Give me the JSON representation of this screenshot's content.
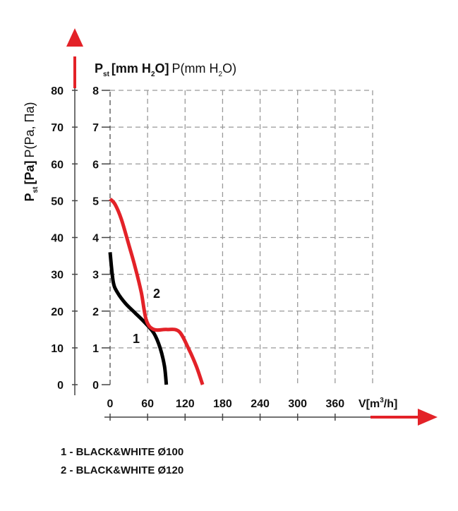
{
  "chart_data": {
    "type": "line",
    "title_right_bold": "P",
    "title_right_sub": "st",
    "title_right_unit_bold": "[mm H",
    "title_right_unit_sub": "2",
    "title_right_unit_bold_end": "O]",
    "title_right_extra": "P(mm H",
    "title_right_extra_sub": "2",
    "title_right_extra_end": "O)",
    "title_left_bold": "P",
    "title_left_sub": "st",
    "title_left_unit_bold": "[Pa]",
    "title_left_extra": "P(Pa, Па)",
    "xlabel": "V[m",
    "xlabel_sup": "3",
    "xlabel_end": "/h]",
    "x_ticks": [
      "0",
      "60",
      "120",
      "180",
      "240",
      "300",
      "360"
    ],
    "y_ticks_pa": [
      "0",
      "10",
      "20",
      "30",
      "40",
      "50",
      "60",
      "70",
      "80"
    ],
    "y_ticks_mm": [
      "0",
      "1",
      "2",
      "3",
      "4",
      "5",
      "6",
      "7",
      "8"
    ],
    "xlim": [
      0,
      420
    ],
    "ylim": [
      0,
      80
    ],
    "grid": true,
    "series": [
      {
        "name": "1",
        "color": "#000000",
        "points": [
          [
            0,
            36
          ],
          [
            5,
            28
          ],
          [
            12,
            25
          ],
          [
            25,
            22
          ],
          [
            40,
            19.5
          ],
          [
            55,
            17
          ],
          [
            70,
            14
          ],
          [
            80,
            10
          ],
          [
            87,
            5
          ],
          [
            90,
            0
          ]
        ]
      },
      {
        "name": "2",
        "color": "#e32228",
        "points": [
          [
            0,
            50.5
          ],
          [
            8,
            49
          ],
          [
            18,
            45
          ],
          [
            30,
            38
          ],
          [
            40,
            32
          ],
          [
            50,
            25
          ],
          [
            58,
            17.5
          ],
          [
            70,
            15
          ],
          [
            90,
            15
          ],
          [
            110,
            14.5
          ],
          [
            125,
            10
          ],
          [
            138,
            5
          ],
          [
            148,
            0
          ]
        ]
      }
    ],
    "legend": [
      "1 - BLACK&WHITE Ø100",
      "2 - BLACK&WHITE Ø120"
    ]
  }
}
